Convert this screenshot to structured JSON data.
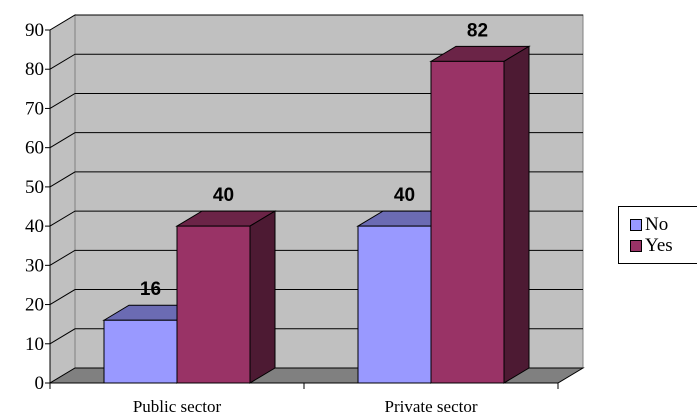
{
  "chart_data": {
    "type": "bar",
    "style": "3d-clustered-column",
    "categories": [
      "Public sector",
      "Private sector"
    ],
    "series": [
      {
        "name": "No",
        "values": [
          16,
          40
        ],
        "color": "#9999ff",
        "top_color": "#6b6bb3",
        "side_color": "#6b6bb3"
      },
      {
        "name": "Yes",
        "values": [
          40,
          82
        ],
        "color": "#993366",
        "top_color": "#6b2447",
        "side_color": "#4d1a33"
      }
    ],
    "data_labels": [
      [
        "16",
        "40"
      ],
      [
        "40",
        "82"
      ]
    ],
    "ylim": [
      0,
      90
    ],
    "yticks": [
      "0",
      "10",
      "20",
      "30",
      "40",
      "50",
      "60",
      "70",
      "80",
      "90"
    ],
    "grid": true,
    "wall_color": "#c0c0c0",
    "floor_color": "#808080",
    "legend_position": "right",
    "title": "",
    "xlabel": "",
    "ylabel": ""
  }
}
